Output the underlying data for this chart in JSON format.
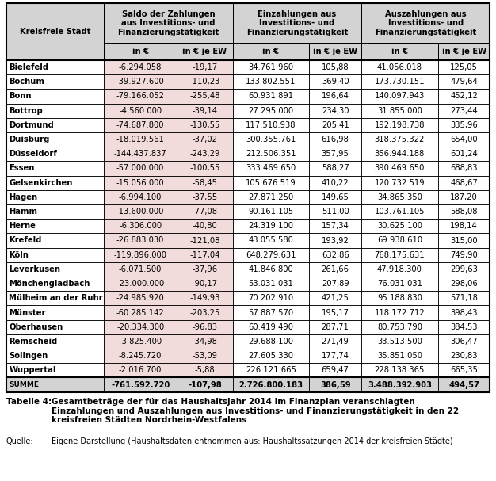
{
  "rows": [
    [
      "Bielefeld",
      "-6.294.058",
      "-19,17",
      "34.761.960",
      "105,88",
      "41.056.018",
      "125,05"
    ],
    [
      "Bochum",
      "-39.927.600",
      "-110,23",
      "133.802.551",
      "369,40",
      "173.730.151",
      "479,64"
    ],
    [
      "Bonn",
      "-79.166.052",
      "-255,48",
      "60.931.891",
      "196,64",
      "140.097.943",
      "452,12"
    ],
    [
      "Bottrop",
      "-4.560.000",
      "-39,14",
      "27.295.000",
      "234,30",
      "31.855.000",
      "273,44"
    ],
    [
      "Dortmund",
      "-74.687.800",
      "-130,55",
      "117.510.938",
      "205,41",
      "192.198.738",
      "335,96"
    ],
    [
      "Duisburg",
      "-18.019.561",
      "-37,02",
      "300.355.761",
      "616,98",
      "318.375.322",
      "654,00"
    ],
    [
      "Düsseldorf",
      "-144.437.837",
      "-243,29",
      "212.506.351",
      "357,95",
      "356.944.188",
      "601,24"
    ],
    [
      "Essen",
      "-57.000.000",
      "-100,55",
      "333.469.650",
      "588,27",
      "390.469.650",
      "688,83"
    ],
    [
      "Gelsenkirchen",
      "-15.056.000",
      "-58,45",
      "105.676.519",
      "410,22",
      "120.732.519",
      "468,67"
    ],
    [
      "Hagen",
      "-6.994.100",
      "-37,55",
      "27.871.250",
      "149,65",
      "34.865.350",
      "187,20"
    ],
    [
      "Hamm",
      "-13.600.000",
      "-77,08",
      "90.161.105",
      "511,00",
      "103.761.105",
      "588,08"
    ],
    [
      "Herne",
      "-6.306.000",
      "-40,80",
      "24.319.100",
      "157,34",
      "30.625.100",
      "198,14"
    ],
    [
      "Krefeld",
      "-26.883.030",
      "-121,08",
      "43.055.580",
      "193,92",
      "69.938.610",
      "315,00"
    ],
    [
      "Köln",
      "-119.896.000",
      "-117,04",
      "648.279.631",
      "632,86",
      "768.175.631",
      "749,90"
    ],
    [
      "Leverkusen",
      "-6.071.500",
      "-37,96",
      "41.846.800",
      "261,66",
      "47.918.300",
      "299,63"
    ],
    [
      "Mönchengladbach",
      "-23.000.000",
      "-90,17",
      "53.031.031",
      "207,89",
      "76.031.031",
      "298,06"
    ],
    [
      "Mülheim an der Ruhr",
      "-24.985.920",
      "-149,93",
      "70.202.910",
      "421,25",
      "95.188.830",
      "571,18"
    ],
    [
      "Münster",
      "-60.285.142",
      "-203,25",
      "57.887.570",
      "195,17",
      "118.172.712",
      "398,43"
    ],
    [
      "Oberhausen",
      "-20.334.300",
      "-96,83",
      "60.419.490",
      "287,71",
      "80.753.790",
      "384,53"
    ],
    [
      "Remscheid",
      "-3.825.400",
      "-34,98",
      "29.688.100",
      "271,49",
      "33.513.500",
      "306,47"
    ],
    [
      "Solingen",
      "-8.245.720",
      "-53,09",
      "27.605.330",
      "177,74",
      "35.851.050",
      "230,83"
    ],
    [
      "Wuppertal",
      "-2.016.700",
      "-5,88",
      "226.121.665",
      "659,47",
      "228.138.365",
      "665,35"
    ],
    [
      "SUMME",
      "-761.592.720",
      "-107,98",
      "2.726.800.183",
      "386,59",
      "3.488.392.903",
      "494,57"
    ]
  ],
  "header_bg": "#d3d3d3",
  "saldo_bg": "#f2dcdb",
  "white_bg": "#ffffff",
  "summe_bg": "#d3d3d3",
  "caption_label": "Tabelle 4:",
  "caption_text": "Gesamtbeträge der für das Haushaltsjahr 2014 im Finanzplan veranschlagten\nEinzahlungen und Auszahlungen aus Investitions- und Finanzierungstätigkeit in den 22\nkreisfreien Städten Nordrhein-Westfalens",
  "source_label": "Quelle:",
  "source_text": "Eigene Darstellung (Haushaltsdaten entnommen aus: Haushaltssatzungen 2014 der kreisfreien Städte)",
  "figsize": [
    6.26,
    6.07
  ],
  "dpi": 100
}
